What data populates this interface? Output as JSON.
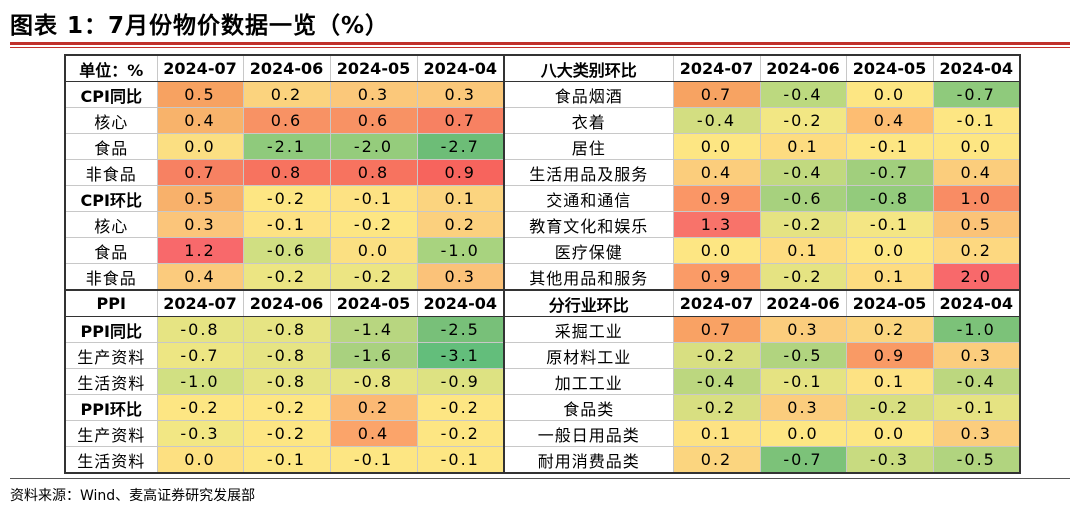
{
  "title": "图表 1：7月份物价数据一览（%）",
  "source": "资料来源：Wind、麦高证券研究发展部",
  "top_header": {
    "left_label": "单位：%",
    "right_label": "八大类别环比",
    "left_dates": [
      "2024-07",
      "2024-06",
      "2024-05",
      "2024-04"
    ],
    "right_dates": [
      "2024-07",
      "2024-06",
      "2024-05",
      "2024-04"
    ]
  },
  "top_rows": [
    {
      "label": "CPI同比",
      "bold": true,
      "values": [
        "0.5",
        "0.2",
        "0.3",
        "0.3"
      ],
      "colors": [
        "#f7a261",
        "#fbd37e",
        "#fbc87a",
        "#fbc87a"
      ],
      "right_label": "食品烟酒",
      "right_values": [
        "0.7",
        "-0.4",
        "0.0",
        "-0.7"
      ],
      "right_colors": [
        "#f7a362",
        "#bcd97f",
        "#fde683",
        "#8fca7c"
      ]
    },
    {
      "label": "核心",
      "bold": false,
      "values": [
        "0.4",
        "0.6",
        "0.6",
        "0.7"
      ],
      "colors": [
        "#f8b36b",
        "#f89264",
        "#f89264",
        "#f78162"
      ],
      "right_label": "衣着",
      "right_values": [
        "-0.4",
        "-0.2",
        "0.4",
        "-0.1"
      ],
      "right_colors": [
        "#d3de81",
        "#f2e784",
        "#fdbd72",
        "#fde683"
      ]
    },
    {
      "label": "食品",
      "bold": false,
      "values": [
        "0.0",
        "-2.1",
        "-2.0",
        "-2.7"
      ],
      "colors": [
        "#fbdf82",
        "#8fca7c",
        "#95cc7c",
        "#6dbd77"
      ],
      "right_label": "居住",
      "right_values": [
        "0.0",
        "0.1",
        "-0.1",
        "0.0"
      ],
      "right_colors": [
        "#fde683",
        "#fddc80",
        "#fde683",
        "#fde683"
      ]
    },
    {
      "label": "非食品",
      "bold": false,
      "values": [
        "0.7",
        "0.8",
        "0.8",
        "0.9"
      ],
      "colors": [
        "#f78162",
        "#f7735f",
        "#f7735f",
        "#f7645d"
      ],
      "right_label": "生活用品及服务",
      "right_values": [
        "0.4",
        "-0.4",
        "-0.7",
        "0.4"
      ],
      "right_colors": [
        "#fbcd7c",
        "#c1d97f",
        "#a1cf7d",
        "#fbcd7c"
      ]
    },
    {
      "label": "CPI环比",
      "bold": true,
      "values": [
        "0.5",
        "-0.2",
        "-0.1",
        "0.1"
      ],
      "colors": [
        "#f8b16b",
        "#fde683",
        "#fde283",
        "#fbd47f"
      ],
      "right_label": "交通和通信",
      "right_values": [
        "0.9",
        "-0.6",
        "-0.8",
        "1.0"
      ],
      "right_colors": [
        "#fa9666",
        "#a7d17e",
        "#93cb7c",
        "#f98c64"
      ]
    },
    {
      "label": "核心",
      "bold": false,
      "values": [
        "0.3",
        "-0.1",
        "-0.2",
        "0.2"
      ],
      "colors": [
        "#fbc57a",
        "#fde283",
        "#fde683",
        "#fbd07e"
      ],
      "right_label": "教育文化和娱乐",
      "right_values": [
        "1.3",
        "-0.2",
        "-0.1",
        "0.5"
      ],
      "right_colors": [
        "#f8736a",
        "#e5e382",
        "#f4e684",
        "#fbc377"
      ]
    },
    {
      "label": "食品",
      "bold": false,
      "values": [
        "1.2",
        "-0.6",
        "0.0",
        "-1.0"
      ],
      "colors": [
        "#f8696b",
        "#d0df82",
        "#fbe082",
        "#a8d37f"
      ],
      "right_label": "医疗保健",
      "right_values": [
        "0.0",
        "0.1",
        "0.0",
        "0.2"
      ],
      "right_colors": [
        "#fde683",
        "#fddc80",
        "#fde683",
        "#fdd880"
      ]
    },
    {
      "label": "非食品",
      "bold": false,
      "values": [
        "0.4",
        "-0.2",
        "-0.2",
        "0.3"
      ],
      "colors": [
        "#fbcb7d",
        "#ece583",
        "#ece583",
        "#fbc279"
      ],
      "right_label": "其他用品和服务",
      "right_values": [
        "0.9",
        "-0.2",
        "0.1",
        "2.0"
      ],
      "right_colors": [
        "#fa9b67",
        "#e5e382",
        "#fddc80",
        "#f8696b"
      ]
    }
  ],
  "bottom_header": {
    "left_label": "PPI",
    "right_label": "分行业环比",
    "left_dates": [
      "2024-07",
      "2024-06",
      "2024-05",
      "2024-04"
    ],
    "right_dates": [
      "2024-07",
      "2024-06",
      "2024-05",
      "2024-04"
    ]
  },
  "bottom_rows": [
    {
      "label": "PPI同比",
      "bold": true,
      "values": [
        "-0.8",
        "-0.8",
        "-1.4",
        "-2.5"
      ],
      "colors": [
        "#e6e483",
        "#e6e483",
        "#b8d680",
        "#78c079"
      ],
      "right_label": "采掘工业",
      "right_values": [
        "0.7",
        "0.3",
        "0.2",
        "-1.0"
      ],
      "right_colors": [
        "#f9a264",
        "#fbcd7d",
        "#fbd57f",
        "#7cc279"
      ]
    },
    {
      "label": "生产资料",
      "bold": false,
      "values": [
        "-0.7",
        "-0.8",
        "-1.6",
        "-3.1"
      ],
      "colors": [
        "#ede683",
        "#e6e483",
        "#a9d17f",
        "#63be7b"
      ],
      "right_label": "原材料工业",
      "right_values": [
        "-0.2",
        "-0.5",
        "0.9",
        "0.3"
      ],
      "right_colors": [
        "#d8df81",
        "#b1d47f",
        "#f99a65",
        "#fbcd7d"
      ]
    },
    {
      "label": "生活资料",
      "bold": false,
      "values": [
        "-1.0",
        "-0.8",
        "-0.8",
        "-0.9"
      ],
      "colors": [
        "#d1e082",
        "#e6e483",
        "#e6e483",
        "#ddE282"
      ],
      "right_label": "加工工业",
      "right_values": [
        "-0.4",
        "-0.1",
        "0.1",
        "-0.4"
      ],
      "right_colors": [
        "#bcd77f",
        "#e5e382",
        "#fde283",
        "#bcd77f"
      ]
    },
    {
      "label": "PPI环比",
      "bold": true,
      "values": [
        "-0.2",
        "-0.2",
        "0.2",
        "-0.2"
      ],
      "colors": [
        "#fde683",
        "#fde683",
        "#fbb974",
        "#fde683"
      ],
      "right_label": "食品类",
      "right_values": [
        "-0.2",
        "0.3",
        "-0.2",
        "-0.1"
      ],
      "right_colors": [
        "#d8df81",
        "#fbcd7d",
        "#d8df81",
        "#e5e382"
      ]
    },
    {
      "label": "生产资料",
      "bold": false,
      "values": [
        "-0.3",
        "-0.2",
        "0.4",
        "-0.2"
      ],
      "colors": [
        "#f2e784",
        "#fde683",
        "#fba46a",
        "#fde683"
      ],
      "right_label": "一般日用品类",
      "right_values": [
        "0.1",
        "0.0",
        "0.0",
        "0.3"
      ],
      "right_colors": [
        "#fde283",
        "#fde683",
        "#fde683",
        "#fbcd7d"
      ]
    },
    {
      "label": "生活资料",
      "bold": false,
      "values": [
        "0.0",
        "-0.1",
        "-0.1",
        "-0.1"
      ],
      "colors": [
        "#fde081",
        "#fde683",
        "#fde683",
        "#fde683"
      ],
      "right_label": "耐用消费品类",
      "right_values": [
        "0.2",
        "-0.7",
        "-0.3",
        "-0.5"
      ],
      "right_colors": [
        "#fbd57f",
        "#7cc279",
        "#c8db80",
        "#b1d47f"
      ]
    }
  ]
}
